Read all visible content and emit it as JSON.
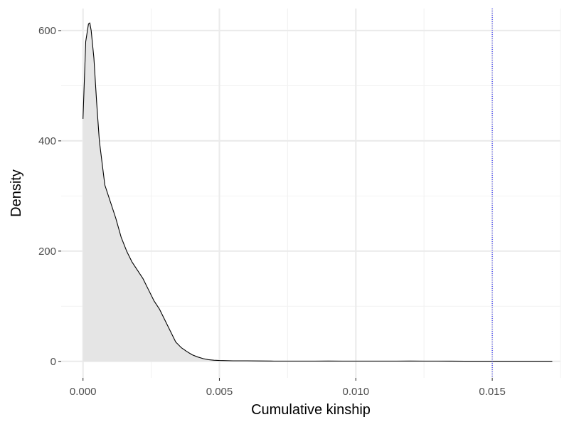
{
  "chart_data": {
    "type": "area",
    "title": "",
    "xlabel": "Cumulative kinship",
    "ylabel": "Density",
    "xlim": [
      -0.0008,
      0.0175
    ],
    "ylim": [
      -30,
      640
    ],
    "x_ticks": [
      0.0,
      0.005,
      0.01,
      0.015
    ],
    "x_tick_labels": [
      "0.000",
      "0.005",
      "0.010",
      "0.015"
    ],
    "y_ticks": [
      0,
      200,
      400,
      600
    ],
    "y_tick_labels": [
      "0",
      "200",
      "400",
      "600"
    ],
    "grid": true,
    "legend": "none",
    "series": [
      {
        "x": [
          0.0,
          0.0001,
          0.0002,
          0.00025,
          0.0003,
          0.0004,
          0.0005,
          0.0006,
          0.0008,
          0.001,
          0.0012,
          0.0014,
          0.0016,
          0.0018,
          0.002,
          0.0022,
          0.0024,
          0.0026,
          0.0028,
          0.003,
          0.0032,
          0.0034,
          0.0036,
          0.0038,
          0.004,
          0.0042,
          0.0044,
          0.0046,
          0.0048,
          0.005,
          0.0055,
          0.006,
          0.0065,
          0.007,
          0.0075,
          0.008,
          0.0085,
          0.009,
          0.0095,
          0.01,
          0.0105,
          0.011,
          0.0115,
          0.012,
          0.0125,
          0.013,
          0.0135,
          0.014,
          0.0145,
          0.015,
          0.0155,
          0.016,
          0.0165,
          0.0172
        ],
        "y": [
          440,
          580,
          612,
          614,
          600,
          550,
          470,
          400,
          320,
          290,
          260,
          225,
          200,
          180,
          165,
          150,
          130,
          110,
          95,
          75,
          55,
          35,
          25,
          18,
          12,
          8,
          5,
          3,
          2,
          1.5,
          1,
          1,
          0.8,
          0.5,
          0.5,
          0.5,
          0.5,
          0.6,
          0.5,
          0.5,
          0.5,
          0.5,
          0.5,
          0.6,
          0.5,
          0.5,
          0.4,
          0.3,
          0.3,
          0.3,
          0.3,
          0.3,
          0.3,
          0.3
        ]
      }
    ],
    "reference_line": {
      "x": 0.015,
      "style": "dotted"
    },
    "colors": {
      "fill": "#e5e5e5",
      "line": "#000000",
      "reference": "#0000ff",
      "grid_major": "#ebebeb",
      "grid_minor": "#f2f2f2"
    }
  }
}
